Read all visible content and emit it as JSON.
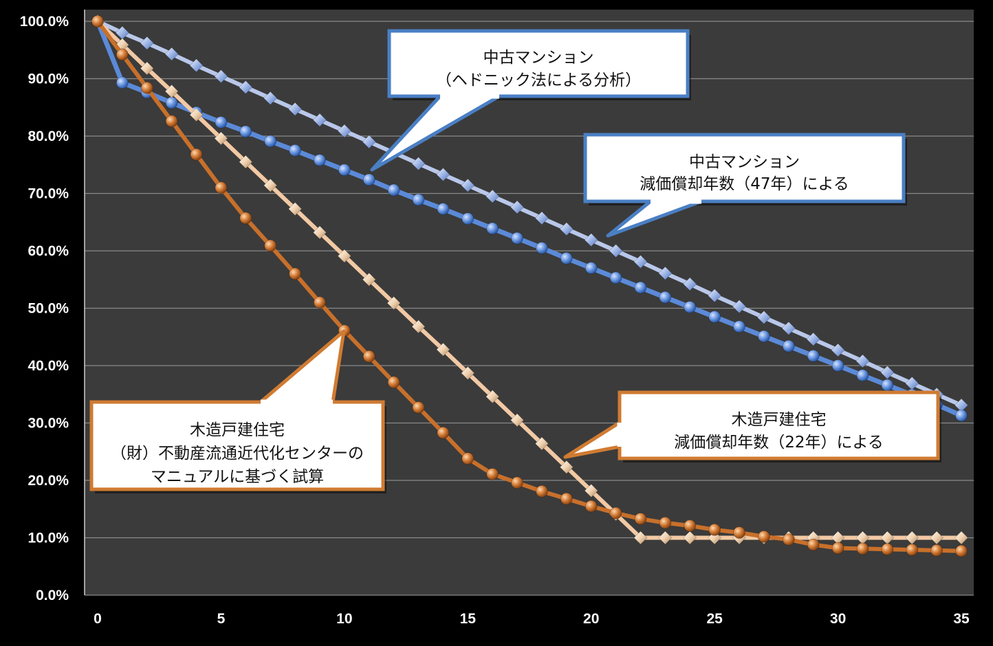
{
  "chart_data": {
    "type": "line",
    "xlim": [
      0,
      35
    ],
    "ylim": [
      0,
      1.0
    ],
    "x_ticks": [
      "0",
      "5",
      "10",
      "15",
      "20",
      "25",
      "30",
      "35"
    ],
    "y_ticks": [
      "0.0%",
      "10.0%",
      "20.0%",
      "30.0%",
      "40.0%",
      "50.0%",
      "60.0%",
      "70.0%",
      "80.0%",
      "90.0%",
      "100.0%"
    ],
    "grid": true,
    "background": "#3b3b3b",
    "series": [
      {
        "color": "#b9c8ea",
        "marker": "diamond",
        "values": [
          1.0,
          0.98,
          0.962,
          0.943,
          0.923,
          0.904,
          0.885,
          0.866,
          0.847,
          0.828,
          0.809,
          0.79,
          0.771,
          0.752,
          0.733,
          0.714,
          0.695,
          0.676,
          0.657,
          0.638,
          0.619,
          0.6,
          0.581,
          0.561,
          0.542,
          0.522,
          0.503,
          0.484,
          0.465,
          0.446,
          0.427,
          0.408,
          0.388,
          0.369,
          0.35,
          0.331
        ]
      },
      {
        "color": "#5b8ad8",
        "marker": "circle",
        "values": [
          1.0,
          0.893,
          0.876,
          0.858,
          0.841,
          0.824,
          0.808,
          0.791,
          0.775,
          0.758,
          0.741,
          0.724,
          0.706,
          0.689,
          0.673,
          0.656,
          0.639,
          0.622,
          0.605,
          0.587,
          0.57,
          0.553,
          0.536,
          0.519,
          0.502,
          0.485,
          0.468,
          0.451,
          0.434,
          0.417,
          0.4,
          0.383,
          0.366,
          0.349,
          0.332,
          0.313
        ]
      },
      {
        "color": "#f2c9a4",
        "marker": "diamond",
        "values": [
          1.0,
          0.959,
          0.918,
          0.878,
          0.837,
          0.796,
          0.755,
          0.714,
          0.673,
          0.632,
          0.591,
          0.55,
          0.509,
          0.468,
          0.428,
          0.387,
          0.346,
          0.305,
          0.264,
          0.223,
          0.182,
          0.141,
          0.1,
          0.1,
          0.1,
          0.1,
          0.1,
          0.1,
          0.1,
          0.1,
          0.1,
          0.1,
          0.1,
          0.1,
          0.1,
          0.1
        ]
      },
      {
        "color": "#c8702b",
        "marker": "circle",
        "values": [
          1.0,
          0.942,
          0.884,
          0.826,
          0.768,
          0.71,
          0.657,
          0.609,
          0.56,
          0.51,
          0.461,
          0.416,
          0.371,
          0.327,
          0.283,
          0.238,
          0.211,
          0.196,
          0.181,
          0.168,
          0.155,
          0.143,
          0.133,
          0.126,
          0.121,
          0.114,
          0.109,
          0.102,
          0.097,
          0.088,
          0.082,
          0.081,
          0.08,
          0.079,
          0.078,
          0.077
        ]
      }
    ],
    "annotations": [
      {
        "lines": [
          "中古マンション",
          "（ヘドニック法による分析）"
        ],
        "border": "#4a7fc4"
      },
      {
        "lines": [
          "中古マンション",
          "減価償却年数（47年）による"
        ],
        "border": "#4a7fc4"
      },
      {
        "lines": [
          "木造戸建住宅",
          "（財）不動産流通近代化センターの",
          "マニュアルに基づく試算"
        ],
        "border": "#d07b32"
      },
      {
        "lines": [
          "木造戸建住宅",
          "減価償却年数（22年）による"
        ],
        "border": "#d07b32"
      }
    ]
  }
}
